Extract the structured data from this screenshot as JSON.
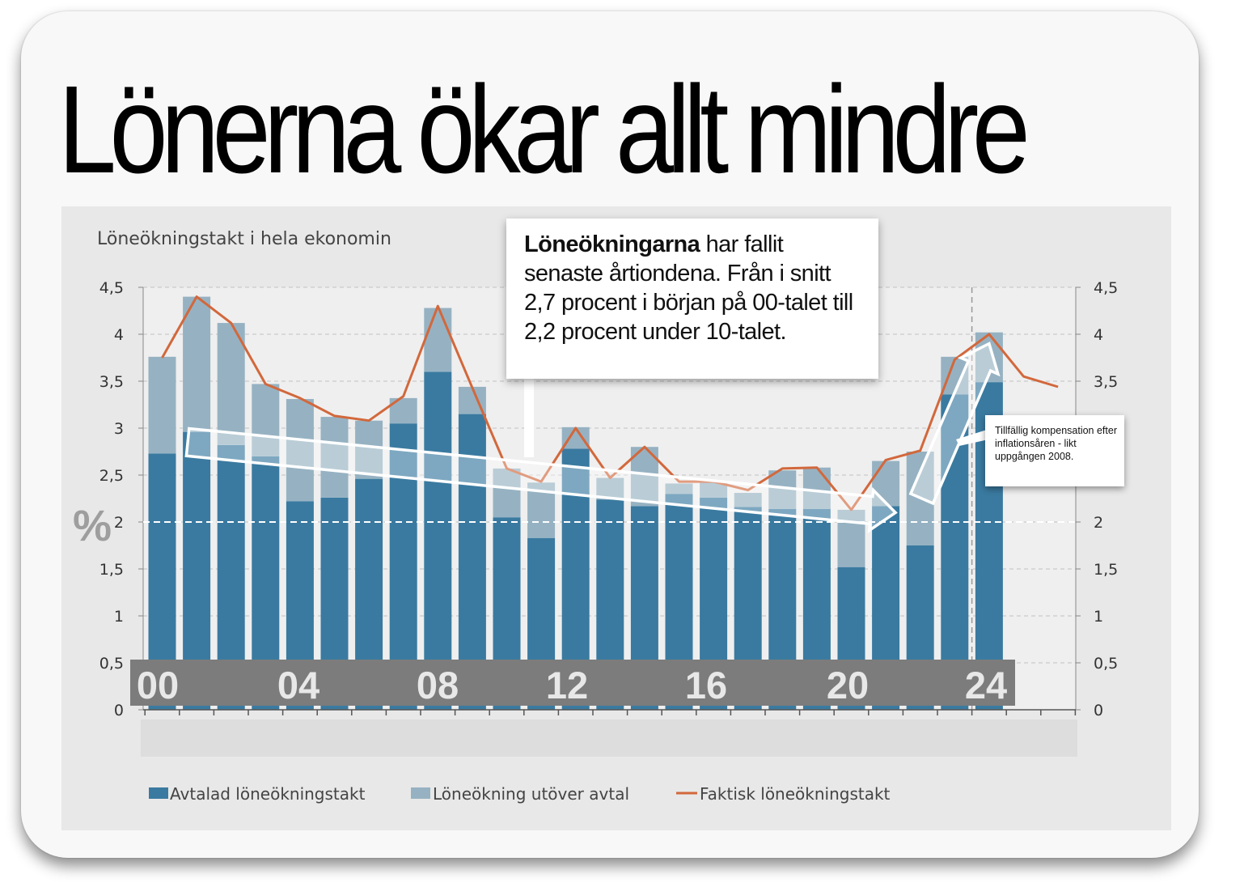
{
  "headline": "Lönerna ökar allt mindre",
  "annotation": {
    "bold": "Löneökningarna",
    "text": " har fallit senaste årtiondena. Från i snitt 2,7 procent i början på 00-talet till 2,2 procent under 10-talet."
  },
  "note": "Tillfällig kompensation efter inflationsåren - likt uppgången 2008.",
  "colors": {
    "avtalad": "#3a7aa0",
    "utover": "#96b2c2",
    "faktisk": "#d2683c",
    "highlight": "rgba(255,255,255,0.35)"
  },
  "chart_data": {
    "type": "bar",
    "title": "Löneökningstakt i hela ekonomin",
    "ylabel": "%",
    "ylim": [
      0,
      4.5
    ],
    "yticks": [
      "0",
      "0,5",
      "1",
      "1,5",
      "2",
      "2,5",
      "3",
      "3,5",
      "4",
      "4,5"
    ],
    "xtick_labels": [
      "00",
      "04",
      "08",
      "12",
      "16",
      "20",
      "24"
    ],
    "categories": [
      2000,
      2001,
      2002,
      2003,
      2004,
      2005,
      2006,
      2007,
      2008,
      2009,
      2010,
      2011,
      2012,
      2013,
      2014,
      2015,
      2016,
      2017,
      2018,
      2019,
      2020,
      2021,
      2022,
      2023,
      2024,
      2025,
      2026
    ],
    "stacked": true,
    "grid": true,
    "reference_line_y": 2,
    "legend_position": "bottom",
    "series": [
      {
        "name": "Avtalad löneökningstakt",
        "type": "bar",
        "values": [
          2.73,
          2.96,
          2.82,
          2.7,
          2.22,
          2.26,
          2.46,
          3.05,
          3.6,
          3.15,
          2.05,
          1.83,
          2.78,
          2.24,
          2.17,
          2.3,
          2.26,
          2.16,
          2.14,
          2.14,
          1.52,
          2.17,
          1.75,
          3.36,
          3.49,
          null,
          null
        ]
      },
      {
        "name": "Löneökning utöver avtal",
        "type": "bar",
        "values": [
          1.03,
          1.44,
          1.3,
          0.77,
          1.09,
          0.86,
          0.62,
          0.27,
          0.68,
          0.29,
          0.52,
          0.59,
          0.23,
          0.23,
          0.63,
          0.11,
          0.17,
          0.15,
          0.41,
          0.44,
          0.61,
          0.48,
          1.0,
          0.4,
          0.53,
          null,
          null
        ]
      },
      {
        "name": "Faktisk löneökningstakt",
        "type": "line",
        "values": [
          3.75,
          4.4,
          4.12,
          3.47,
          3.32,
          3.13,
          3.08,
          3.34,
          4.3,
          3.43,
          2.57,
          2.43,
          3.0,
          2.47,
          2.8,
          2.43,
          2.43,
          2.34,
          2.57,
          2.58,
          2.13,
          2.66,
          2.76,
          3.73,
          4.0,
          3.55,
          3.44
        ]
      }
    ],
    "annotations": [
      {
        "type": "arrow",
        "from_year": 2001,
        "from_value": 2.85,
        "to_year": 2021,
        "to_value": 2.1
      },
      {
        "type": "arrow",
        "from_year": 2022,
        "from_value": 2.25,
        "to_year": 2024,
        "to_value": 3.9
      }
    ]
  }
}
